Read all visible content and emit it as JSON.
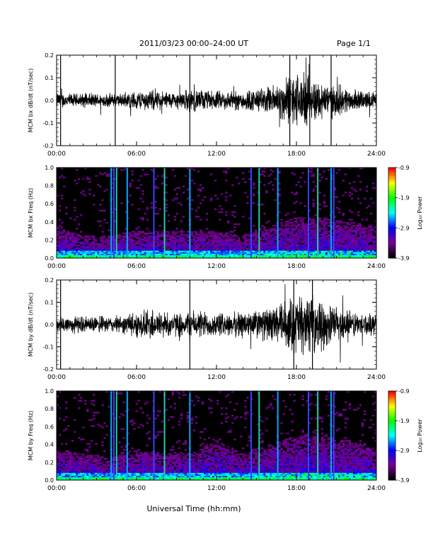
{
  "header": {
    "title": "2011/03/23  00:00–24:00 UT",
    "page": "Page 1/1"
  },
  "xlabel_bottom": "Universal Time (hh:mm)",
  "colors": {
    "background": "#ffffff",
    "signal": "#000000",
    "spectrogram_bg": "#000000"
  },
  "colorbar": {
    "label": "Log₁₀ Power",
    "ticks": [
      "-0.9",
      "-1.9",
      "-2.9",
      "-3.9"
    ],
    "range": [
      -3.9,
      -0.9
    ],
    "colormap": [
      "#000000",
      "#7a0099",
      "#0000ff",
      "#00ffff",
      "#00ff00",
      "#ffff00",
      "#ff0000"
    ]
  },
  "chart_data": [
    {
      "type": "line",
      "ylabel": "MCM bx dB/dt (nT/sec)",
      "xlim": [
        0,
        24
      ],
      "ylim": [
        -0.2,
        0.2
      ],
      "xticks": [
        "00:00",
        "06:00",
        "12:00",
        "18:00",
        "24:00"
      ],
      "yticks": [
        "0.2",
        "0.1",
        "0.0",
        "-0.1",
        "-0.2"
      ],
      "series_envelope": {
        "hours": [
          0,
          1,
          2,
          3,
          4,
          5,
          6,
          7,
          8,
          9,
          10,
          11,
          12,
          13,
          14,
          15,
          16,
          17,
          18,
          19,
          20,
          21,
          22,
          23,
          24
        ],
        "amplitude": [
          0.035,
          0.03,
          0.03,
          0.03,
          0.03,
          0.03,
          0.04,
          0.045,
          0.04,
          0.035,
          0.05,
          0.045,
          0.04,
          0.04,
          0.045,
          0.05,
          0.06,
          0.09,
          0.12,
          0.1,
          0.08,
          0.07,
          0.05,
          0.04,
          0.035
        ]
      },
      "spikes_hours": [
        0.3,
        4.4,
        10.0,
        17.5,
        19.0,
        20.6
      ]
    },
    {
      "type": "heatmap",
      "ylabel": "MCM bx Freq (Hz)",
      "xlim": [
        0,
        24
      ],
      "ylim": [
        0.0,
        1.0
      ],
      "xticks": [
        "00:00",
        "06:00",
        "12:00",
        "18:00",
        "24:00"
      ],
      "yticks": [
        "1.0",
        "0.8",
        "0.6",
        "0.4",
        "0.2",
        "0.0"
      ],
      "vertical_lines_hours": [
        4.1,
        4.3,
        4.5,
        5.3,
        7.3,
        8.1,
        10.0,
        14.6,
        15.2,
        16.6,
        18.9,
        19.6,
        20.6,
        20.8
      ],
      "activity_envelope": {
        "hours": [
          0,
          2,
          4,
          6,
          8,
          10,
          12,
          14,
          16,
          18,
          20,
          22,
          24
        ],
        "max_freq": [
          0.35,
          0.25,
          0.25,
          0.3,
          0.3,
          0.3,
          0.3,
          0.25,
          0.35,
          0.45,
          0.45,
          0.4,
          0.35
        ]
      }
    },
    {
      "type": "line",
      "ylabel": "MCM by dB/dt (nT/sec)",
      "xlim": [
        0,
        24
      ],
      "ylim": [
        -0.2,
        0.2
      ],
      "xticks": [
        "00:00",
        "06:00",
        "12:00",
        "18:00",
        "24:00"
      ],
      "yticks": [
        "0.2",
        "0.1",
        "0.0",
        "-0.1",
        "-0.2"
      ],
      "series_envelope": {
        "hours": [
          0,
          1,
          2,
          3,
          4,
          5,
          6,
          7,
          8,
          9,
          10,
          11,
          12,
          13,
          14,
          15,
          16,
          17,
          18,
          19,
          20,
          21,
          22,
          23,
          24
        ],
        "amplitude": [
          0.04,
          0.04,
          0.035,
          0.035,
          0.035,
          0.04,
          0.055,
          0.07,
          0.06,
          0.05,
          0.06,
          0.06,
          0.05,
          0.05,
          0.06,
          0.065,
          0.07,
          0.1,
          0.13,
          0.12,
          0.1,
          0.08,
          0.06,
          0.05,
          0.045
        ]
      },
      "spikes_hours": [
        0.3,
        10.0,
        17.8,
        19.2
      ]
    },
    {
      "type": "heatmap",
      "ylabel": "MCM by Freq (Hz)",
      "xlim": [
        0,
        24
      ],
      "ylim": [
        0.0,
        1.0
      ],
      "xticks": [
        "00:00",
        "06:00",
        "12:00",
        "18:00",
        "24:00"
      ],
      "yticks": [
        "1.0",
        "0.8",
        "0.6",
        "0.4",
        "0.2",
        "0.0"
      ],
      "vertical_lines_hours": [
        4.1,
        4.3,
        4.5,
        5.3,
        7.3,
        8.1,
        10.0,
        14.6,
        15.2,
        16.6,
        18.9,
        19.6,
        20.6,
        20.8
      ],
      "activity_envelope": {
        "hours": [
          0,
          2,
          4,
          6,
          8,
          10,
          12,
          14,
          16,
          18,
          20,
          22,
          24
        ],
        "max_freq": [
          0.35,
          0.3,
          0.25,
          0.35,
          0.3,
          0.3,
          0.45,
          0.3,
          0.4,
          0.5,
          0.5,
          0.45,
          0.35
        ]
      }
    }
  ]
}
